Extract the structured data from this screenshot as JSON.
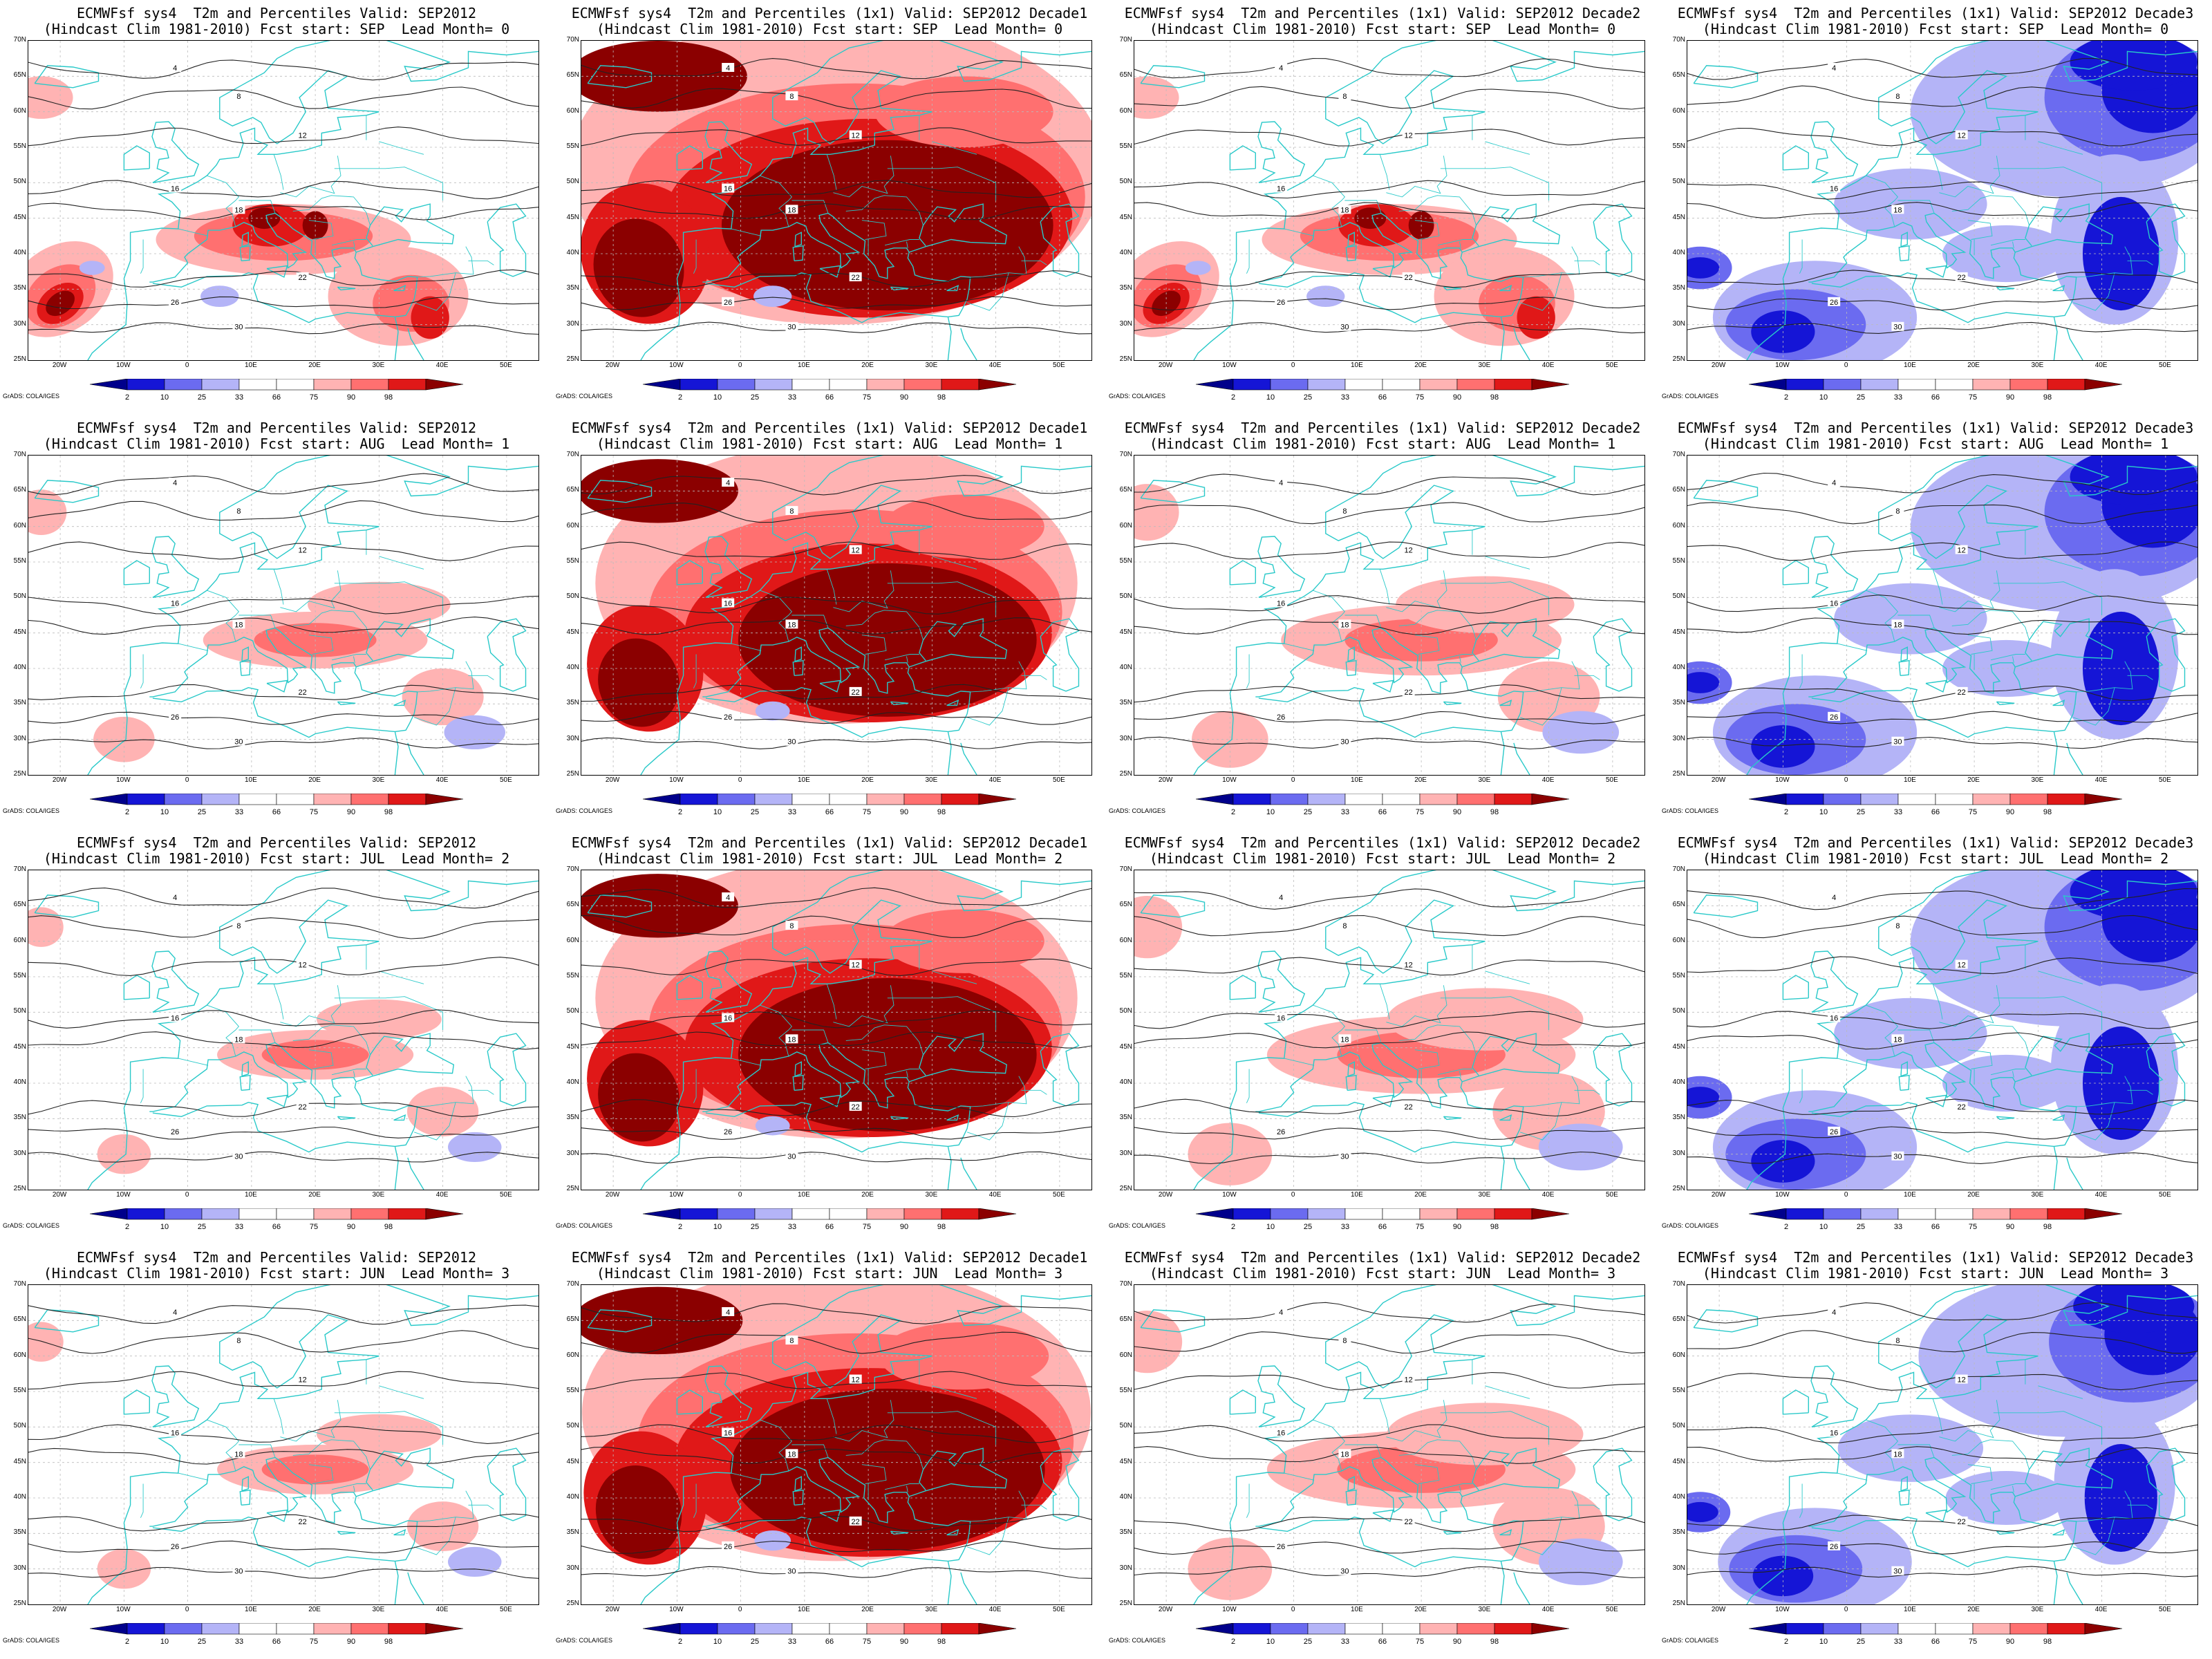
{
  "panels": [
    {
      "title1": "ECMWFsf sys4  T2m and Percentiles Valid: SEP2012",
      "title2": "(Hindcast Clim 1981-2010) Fcst start: SEP  Lead Month= 0",
      "pattern": "mild-warm-south",
      "intensity": 1.0
    },
    {
      "title1": "ECMWFsf sys4  T2m and Percentiles (1x1) Valid: SEP2012 Decade1",
      "title2": "(Hindcast Clim 1981-2010) Fcst start: SEP  Lead Month= 0",
      "pattern": "strong-warm",
      "intensity": 1.0
    },
    {
      "title1": "ECMWFsf sys4  T2m and Percentiles (1x1) Valid: SEP2012 Decade2",
      "title2": "(Hindcast Clim 1981-2010) Fcst start: SEP  Lead Month= 0",
      "pattern": "mild-warm-south",
      "intensity": 1.0
    },
    {
      "title1": "ECMWFsf sys4  T2m and Percentiles (1x1) Valid: SEP2012 Decade3",
      "title2": "(Hindcast Clim 1981-2010) Fcst start: SEP  Lead Month= 0",
      "pattern": "cold",
      "intensity": 1.0
    },
    {
      "title1": "ECMWFsf sys4  T2m and Percentiles Valid: SEP2012",
      "title2": "(Hindcast Clim 1981-2010) Fcst start: AUG  Lead Month= 1",
      "pattern": "weak-warm",
      "intensity": 0.8
    },
    {
      "title1": "ECMWFsf sys4  T2m and Percentiles (1x1) Valid: SEP2012 Decade1",
      "title2": "(Hindcast Clim 1981-2010) Fcst start: AUG  Lead Month= 1",
      "pattern": "strong-warm",
      "intensity": 0.9
    },
    {
      "title1": "ECMWFsf sys4  T2m and Percentiles (1x1) Valid: SEP2012 Decade2",
      "title2": "(Hindcast Clim 1981-2010) Fcst start: AUG  Lead Month= 1",
      "pattern": "weak-warm",
      "intensity": 1.0
    },
    {
      "title1": "ECMWFsf sys4  T2m and Percentiles (1x1) Valid: SEP2012 Decade3",
      "title2": "(Hindcast Clim 1981-2010) Fcst start: AUG  Lead Month= 1",
      "pattern": "cold",
      "intensity": 1.0
    },
    {
      "title1": "ECMWFsf sys4  T2m and Percentiles Valid: SEP2012",
      "title2": "(Hindcast Clim 1981-2010) Fcst start: JUL  Lead Month= 2",
      "pattern": "weak-warm",
      "intensity": 0.7
    },
    {
      "title1": "ECMWFsf sys4  T2m and Percentiles (1x1) Valid: SEP2012 Decade1",
      "title2": "(Hindcast Clim 1981-2010) Fcst start: JUL  Lead Month= 2",
      "pattern": "strong-warm",
      "intensity": 0.9
    },
    {
      "title1": "ECMWFsf sys4  T2m and Percentiles (1x1) Valid: SEP2012 Decade2",
      "title2": "(Hindcast Clim 1981-2010) Fcst start: JUL  Lead Month= 2",
      "pattern": "weak-warm",
      "intensity": 1.1
    },
    {
      "title1": "ECMWFsf sys4  T2m and Percentiles (1x1) Valid: SEP2012 Decade3",
      "title2": "(Hindcast Clim 1981-2010) Fcst start: JUL  Lead Month= 2",
      "pattern": "cold",
      "intensity": 1.0
    },
    {
      "title1": "ECMWFsf sys4  T2m and Percentiles Valid: SEP2012",
      "title2": "(Hindcast Clim 1981-2010) Fcst start: JUN  Lead Month= 3",
      "pattern": "weak-warm",
      "intensity": 0.7
    },
    {
      "title1": "ECMWFsf sys4  T2m and Percentiles (1x1) Valid: SEP2012 Decade1",
      "title2": "(Hindcast Clim 1981-2010) Fcst start: JUN  Lead Month= 3",
      "pattern": "strong-warm",
      "intensity": 0.95
    },
    {
      "title1": "ECMWFsf sys4  T2m and Percentiles (1x1) Valid: SEP2012 Decade2",
      "title2": "(Hindcast Clim 1981-2010) Fcst start: JUN  Lead Month= 3",
      "pattern": "weak-warm",
      "intensity": 1.1
    },
    {
      "title1": "ECMWFsf sys4  T2m and Percentiles (1x1) Valid: SEP2012 Decade3",
      "title2": "(Hindcast Clim 1981-2010) Fcst start: JUN  Lead Month= 3",
      "pattern": "cold",
      "intensity": 0.95
    }
  ],
  "lat_labels": [
    "70N",
    "65N",
    "60N",
    "55N",
    "50N",
    "45N",
    "40N",
    "35N",
    "30N",
    "25N"
  ],
  "lon_labels": [
    "20W",
    "10W",
    "0",
    "10E",
    "20E",
    "30E",
    "40E",
    "50E"
  ],
  "colorbar": {
    "ticks": [
      "2",
      "10",
      "25",
      "33",
      "66",
      "75",
      "90",
      "98"
    ],
    "colors": [
      "#00008b",
      "#1515d6",
      "#6b6bf0",
      "#b4b4f7",
      "#ffffff",
      "#ffffff",
      "#ffb3b3",
      "#ff7070",
      "#e01818",
      "#8b0000"
    ]
  },
  "credit": "GrADS: COLA/IGES",
  "contour_labels": [
    "4",
    "8",
    "12",
    "16",
    "18",
    "22",
    "26",
    "30"
  ],
  "colors": {
    "coast": "#29c9c9",
    "contour": "#222222",
    "grid": "#bbbbbb"
  }
}
